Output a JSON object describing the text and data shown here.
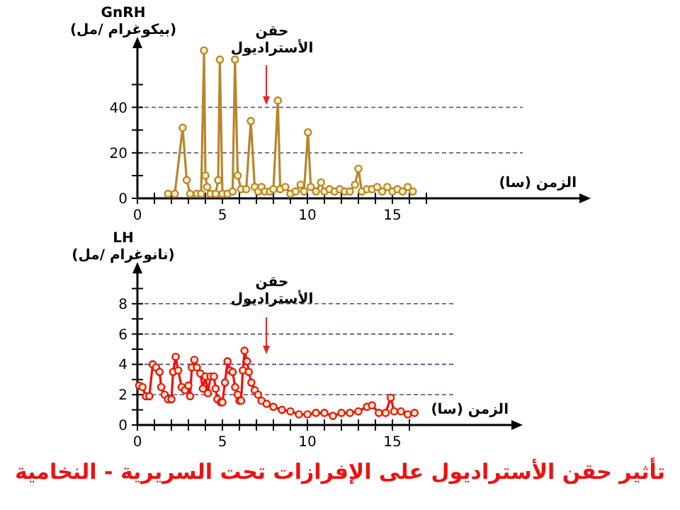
{
  "chart_data": [
    {
      "type": "line",
      "ylabel": "GnRH\n(بيكوغرام /مل)",
      "xlabel": "الزمن (سا)",
      "color": "#b8862c",
      "marker": "circle",
      "grid": "y",
      "xlim": [
        0,
        26
      ],
      "ylim": [
        0,
        66
      ],
      "xticks": [
        0,
        {
          "value": 1,
          "label": null
        },
        {
          "value": 2,
          "label": null
        },
        {
          "value": 3,
          "label": null
        },
        {
          "value": 4,
          "label": null
        },
        5,
        {
          "value": 6,
          "label": null
        },
        {
          "value": 7,
          "label": null
        },
        {
          "value": 8,
          "label": null
        },
        {
          "value": 9,
          "label": null
        },
        10,
        {
          "value": 11,
          "label": null
        },
        {
          "value": 12,
          "label": null
        },
        {
          "value": 13,
          "label": null
        },
        {
          "value": 14,
          "label": null
        },
        15,
        {
          "value": 16,
          "label": null
        },
        {
          "value": 17,
          "label": null
        }
      ],
      "yticks": [
        {
          "value": 0,
          "label": "0"
        },
        {
          "value": 10,
          "label": null
        },
        20,
        {
          "value": 30,
          "label": null
        },
        40,
        {
          "value": 50,
          "label": null
        }
      ],
      "x": [
        1.8,
        2.2,
        2.66,
        2.9,
        3.1,
        3.5,
        3.75,
        3.92,
        4.0,
        4.1,
        4.3,
        4.6,
        4.75,
        4.85,
        5.0,
        5.3,
        5.6,
        5.74,
        5.9,
        6.1,
        6.4,
        6.67,
        6.9,
        7.1,
        7.3,
        7.5,
        7.8,
        8.0,
        8.26,
        8.4,
        8.7,
        9.0,
        9.3,
        9.6,
        9.8,
        10.03,
        10.2,
        10.5,
        10.8,
        11.0,
        11.3,
        11.6,
        11.9,
        12.2,
        12.5,
        12.8,
        13.0,
        13.2,
        13.5,
        13.8,
        14.1,
        14.4,
        14.7,
        15.0,
        15.3,
        15.6,
        15.9,
        16.2
      ],
      "values": [
        2,
        2,
        31,
        8,
        2,
        2,
        2,
        65,
        10,
        5,
        2,
        2,
        8,
        61,
        2,
        2,
        3,
        61,
        10,
        4,
        4,
        34,
        5,
        3,
        5,
        3,
        3,
        4,
        43,
        4,
        5,
        2,
        3,
        6,
        3,
        29,
        5,
        3,
        7,
        3,
        4,
        3,
        4,
        3,
        3,
        6,
        13,
        3,
        4,
        4,
        5,
        3,
        5,
        3,
        4,
        3,
        5,
        3
      ],
      "annotations": [
        "حقن\nالأستراديول"
      ]
    },
    {
      "type": "line",
      "ylabel": "LH\n(نانوغرام /مل)",
      "xlabel": "الزمن (سا)",
      "color": "#ee1111",
      "marker": "circle",
      "grid": "y",
      "title": "تأثير حقن الأستراديول على الإفرازات تحت السريرية - النخامية",
      "xlim": [
        0,
        22
      ],
      "ylim": [
        0,
        10
      ],
      "xticks": [
        0,
        {
          "value": 1,
          "label": null
        },
        {
          "value": 2,
          "label": null
        },
        {
          "value": 3,
          "label": null
        },
        {
          "value": 4,
          "label": null
        },
        5,
        {
          "value": 6,
          "label": null
        },
        {
          "value": 7,
          "label": null
        },
        {
          "value": 8,
          "label": null
        },
        {
          "value": 9,
          "label": null
        },
        10,
        {
          "value": 11,
          "label": null
        },
        {
          "value": 12,
          "label": null
        },
        {
          "value": 13,
          "label": null
        },
        {
          "value": 14,
          "label": null
        },
        15,
        {
          "value": 16,
          "label": null
        }
      ],
      "yticks": [
        0,
        {
          "value": 1,
          "label": null
        },
        2,
        {
          "value": 3,
          "label": null
        },
        4,
        {
          "value": 5,
          "label": null
        },
        6,
        {
          "value": 7,
          "label": null
        },
        8,
        {
          "value": 9,
          "label": null
        }
      ],
      "x": [
        0.1,
        0.3,
        0.5,
        0.7,
        0.9,
        1.1,
        1.3,
        1.4,
        1.6,
        1.8,
        2.0,
        2.1,
        2.25,
        2.4,
        2.6,
        2.8,
        3.0,
        3.1,
        3.2,
        3.35,
        3.5,
        3.7,
        3.85,
        4.0,
        4.15,
        4.3,
        4.5,
        4.6,
        4.7,
        4.9,
        5.0,
        5.15,
        5.3,
        5.45,
        5.6,
        5.75,
        5.9,
        6.0,
        6.1,
        6.2,
        6.3,
        6.45,
        6.55,
        6.7,
        6.9,
        7.1,
        7.3,
        7.6,
        8.0,
        8.5,
        9.0,
        9.5,
        10.0,
        10.5,
        11.0,
        11.5,
        12.0,
        12.5,
        13.0,
        13.5,
        13.8,
        14.2,
        14.6,
        14.9,
        15.1,
        15.5,
        15.9,
        16.3
      ],
      "values": [
        2.6,
        2.5,
        1.9,
        1.9,
        4.0,
        3.8,
        3.5,
        2.5,
        2.0,
        1.7,
        1.7,
        3.5,
        4.5,
        3.6,
        2.5,
        2.3,
        2.6,
        1.9,
        3.8,
        4.3,
        3.8,
        3.4,
        2.4,
        3.2,
        2.1,
        3.2,
        3.2,
        2.4,
        1.7,
        1.5,
        1.5,
        2.8,
        4.2,
        3.6,
        3.5,
        2.5,
        2.0,
        1.6,
        1.6,
        3.6,
        4.9,
        4.2,
        3.5,
        2.8,
        2.3,
        2.0,
        1.6,
        1.4,
        1.2,
        1.0,
        0.9,
        0.7,
        0.7,
        0.8,
        0.8,
        0.6,
        0.8,
        0.8,
        0.9,
        1.2,
        1.3,
        0.8,
        0.8,
        1.8,
        0.9,
        0.9,
        0.7,
        0.8
      ],
      "annotations": [
        "حقن\nالأستراديول"
      ]
    }
  ]
}
